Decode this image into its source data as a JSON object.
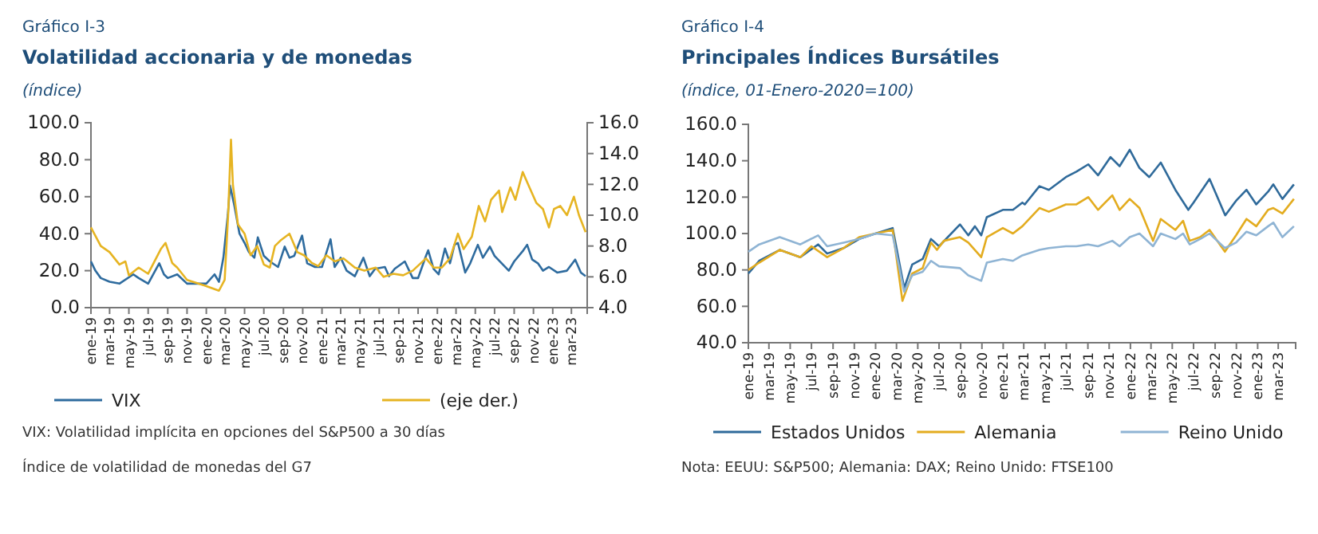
{
  "chart_data": [
    {
      "type": "line",
      "title": "Gráfico I-3",
      "subtitle": "Volatilidad accionaria y de monedas",
      "ylabel": "(índice)",
      "xlim": [
        "2019-01-01",
        "2023-04-20"
      ],
      "xticks": [
        {
          "value": "2019-01",
          "label": "ene-19"
        },
        {
          "value": "2019-03",
          "label": "mar-19"
        },
        {
          "value": "2019-05",
          "label": "may-19"
        },
        {
          "value": "2019-07",
          "label": "jul-19"
        },
        {
          "value": "2019-09",
          "label": "sep-19"
        },
        {
          "value": "2019-11",
          "label": "nov-19"
        },
        {
          "value": "2020-01",
          "label": "ene-20"
        },
        {
          "value": "2020-03",
          "label": "mar-20"
        },
        {
          "value": "2020-05",
          "label": "may-20"
        },
        {
          "value": "2020-07",
          "label": "jul-20"
        },
        {
          "value": "2020-09",
          "label": "sep-20"
        },
        {
          "value": "2020-11",
          "label": "nov-20"
        },
        {
          "value": "2021-01",
          "label": "ene-21"
        },
        {
          "value": "2021-03",
          "label": "mar-21"
        },
        {
          "value": "2021-05",
          "label": "may-21"
        },
        {
          "value": "2021-07",
          "label": "jul-21"
        },
        {
          "value": "2021-09",
          "label": "sep-21"
        },
        {
          "value": "2021-11",
          "label": "nov-21"
        },
        {
          "value": "2022-01",
          "label": "ene-22"
        },
        {
          "value": "2022-03",
          "label": "mar-22"
        },
        {
          "value": "2022-05",
          "label": "may-22"
        },
        {
          "value": "2022-07",
          "label": "jul-22"
        },
        {
          "value": "2022-09",
          "label": "sep-22"
        },
        {
          "value": "2022-11",
          "label": "nov-22"
        },
        {
          "value": "2023-01",
          "label": "ene-23"
        },
        {
          "value": "2023-03",
          "label": "mar-23"
        }
      ],
      "ylim": [
        0,
        100
      ],
      "yticks": [
        {
          "value": 0,
          "label": "0.0"
        },
        {
          "value": 20,
          "label": "20.0"
        },
        {
          "value": 40,
          "label": "40.0"
        },
        {
          "value": 60,
          "label": "60.0"
        },
        {
          "value": 80,
          "label": "80.0"
        },
        {
          "value": 100,
          "label": "100.0"
        }
      ],
      "y2lim": [
        4,
        16
      ],
      "y2ticks": [
        {
          "value": 4,
          "label": "4.0"
        },
        {
          "value": 6,
          "label": "6.0"
        },
        {
          "value": 8,
          "label": "8.0"
        },
        {
          "value": 10,
          "label": "10.0"
        },
        {
          "value": 12,
          "label": "12.0"
        },
        {
          "value": 14,
          "label": "14.0"
        },
        {
          "value": 16,
          "label": "16.0"
        }
      ],
      "legend": "bottom",
      "series": [
        {
          "name": "VIX",
          "color": "#2e6b9e",
          "x": [
            "2019-01-01",
            "2019-01-15",
            "2019-02-01",
            "2019-03-01",
            "2019-04-01",
            "2019-05-15",
            "2019-06-01",
            "2019-07-01",
            "2019-08-05",
            "2019-08-20",
            "2019-09-01",
            "2019-10-01",
            "2019-11-01",
            "2019-12-01",
            "2020-01-01",
            "2020-01-27",
            "2020-02-10",
            "2020-02-24",
            "2020-03-09",
            "2020-03-16",
            "2020-03-30",
            "2020-04-15",
            "2020-05-01",
            "2020-05-15",
            "2020-06-01",
            "2020-06-12",
            "2020-07-01",
            "2020-07-20",
            "2020-08-15",
            "2020-09-05",
            "2020-09-20",
            "2020-10-05",
            "2020-10-30",
            "2020-11-15",
            "2020-12-10",
            "2021-01-01",
            "2021-01-28",
            "2021-02-10",
            "2021-03-01",
            "2021-03-20",
            "2021-04-15",
            "2021-05-12",
            "2021-06-01",
            "2021-06-18",
            "2021-07-19",
            "2021-08-01",
            "2021-08-19",
            "2021-09-20",
            "2021-10-15",
            "2021-11-01",
            "2021-11-26",
            "2021-12-03",
            "2021-12-20",
            "2022-01-05",
            "2022-01-25",
            "2022-02-10",
            "2022-02-24",
            "2022-03-07",
            "2022-03-30",
            "2022-04-15",
            "2022-05-09",
            "2022-05-25",
            "2022-06-16",
            "2022-07-01",
            "2022-08-15",
            "2022-09-01",
            "2022-09-30",
            "2022-10-12",
            "2022-10-28",
            "2022-11-15",
            "2022-12-01",
            "2022-12-20",
            "2023-01-15",
            "2023-02-15",
            "2023-03-13",
            "2023-03-31",
            "2023-04-15"
          ],
          "values": [
            25,
            20,
            16,
            14,
            13,
            18,
            16,
            13,
            24,
            18,
            16,
            18,
            13,
            13,
            13,
            18,
            14,
            27,
            50,
            66,
            55,
            40,
            35,
            30,
            27,
            38,
            28,
            25,
            22,
            33,
            27,
            28,
            39,
            24,
            22,
            22,
            37,
            22,
            27,
            20,
            17,
            27,
            17,
            21,
            22,
            17,
            21,
            25,
            16,
            16,
            28,
            31,
            21,
            18,
            32,
            24,
            34,
            35,
            19,
            24,
            34,
            27,
            33,
            28,
            20,
            25,
            31,
            34,
            26,
            24,
            20,
            22,
            19,
            20,
            26,
            19,
            17
          ]
        },
        {
          "name": "(eje der.)",
          "color": "#e6b422",
          "axis": "y2",
          "x": [
            "2019-01-01",
            "2019-02-01",
            "2019-03-01",
            "2019-04-01",
            "2019-04-20",
            "2019-05-01",
            "2019-06-01",
            "2019-07-01",
            "2019-08-10",
            "2019-08-25",
            "2019-09-15",
            "2019-10-01",
            "2019-11-01",
            "2019-12-01",
            "2020-01-01",
            "2020-02-10",
            "2020-02-28",
            "2020-03-10",
            "2020-03-19",
            "2020-03-25",
            "2020-04-10",
            "2020-05-01",
            "2020-05-20",
            "2020-06-10",
            "2020-07-01",
            "2020-07-20",
            "2020-08-05",
            "2020-08-25",
            "2020-09-20",
            "2020-10-15",
            "2020-11-05",
            "2020-11-30",
            "2020-12-20",
            "2021-01-15",
            "2021-02-10",
            "2021-03-10",
            "2021-04-15",
            "2021-05-15",
            "2021-06-20",
            "2021-07-15",
            "2021-08-15",
            "2021-09-15",
            "2021-10-15",
            "2021-11-26",
            "2021-12-20",
            "2022-01-15",
            "2022-02-10",
            "2022-03-07",
            "2022-03-25",
            "2022-04-20",
            "2022-05-12",
            "2022-06-01",
            "2022-06-20",
            "2022-07-15",
            "2022-07-25",
            "2022-08-20",
            "2022-09-05",
            "2022-09-28",
            "2022-10-15",
            "2022-11-10",
            "2022-12-01",
            "2022-12-20",
            "2023-01-05",
            "2023-01-25",
            "2023-02-15",
            "2023-03-09",
            "2023-03-25",
            "2023-04-15"
          ],
          "values": [
            9.2,
            8.0,
            7.6,
            6.8,
            7.0,
            6.1,
            6.6,
            6.2,
            7.8,
            8.2,
            6.9,
            6.6,
            5.8,
            5.6,
            5.4,
            5.1,
            5.8,
            10,
            14.9,
            12,
            9.4,
            8.8,
            7.4,
            8.0,
            6.8,
            6.6,
            8.0,
            8.4,
            8.8,
            7.6,
            7.4,
            6.9,
            6.7,
            7.4,
            7.0,
            7.2,
            6.6,
            6.4,
            6.6,
            6.0,
            6.2,
            6.1,
            6.4,
            7.2,
            6.6,
            6.6,
            7.2,
            8.8,
            7.8,
            8.6,
            10.6,
            9.6,
            11.0,
            11.6,
            10.2,
            11.8,
            11.0,
            12.8,
            12.0,
            10.8,
            10.4,
            9.2,
            10.4,
            10.6,
            10.0,
            11.2,
            10.0,
            8.9
          ]
        }
      ],
      "annotations": [
        "VIX: Volatilidad implícita en opciones del S&P500 a 30 días",
        "Índice de volatilidad de monedas del G7"
      ]
    },
    {
      "type": "line",
      "title": "Gráfico I-4",
      "subtitle": "Principales Índices Bursátiles",
      "ylabel": "(índice, 01-Enero-2020=100)",
      "xlim": [
        "2019-01-01",
        "2023-04-20"
      ],
      "xticks": [
        {
          "value": "2019-01",
          "label": "ene-19"
        },
        {
          "value": "2019-03",
          "label": "mar-19"
        },
        {
          "value": "2019-05",
          "label": "may-19"
        },
        {
          "value": "2019-07",
          "label": "jul-19"
        },
        {
          "value": "2019-09",
          "label": "sep-19"
        },
        {
          "value": "2019-11",
          "label": "nov-19"
        },
        {
          "value": "2020-01",
          "label": "ene-20"
        },
        {
          "value": "2020-03",
          "label": "mar-20"
        },
        {
          "value": "2020-05",
          "label": "may-20"
        },
        {
          "value": "2020-07",
          "label": "jul-20"
        },
        {
          "value": "2020-09",
          "label": "sep-20"
        },
        {
          "value": "2020-11",
          "label": "nov-20"
        },
        {
          "value": "2021-01",
          "label": "ene-21"
        },
        {
          "value": "2021-03",
          "label": "mar-21"
        },
        {
          "value": "2021-05",
          "label": "may-21"
        },
        {
          "value": "2021-07",
          "label": "jul-21"
        },
        {
          "value": "2021-09",
          "label": "sep-21"
        },
        {
          "value": "2021-11",
          "label": "nov-21"
        },
        {
          "value": "2022-01",
          "label": "ene-22"
        },
        {
          "value": "2022-03",
          "label": "mar-22"
        },
        {
          "value": "2022-05",
          "label": "may-22"
        },
        {
          "value": "2022-07",
          "label": "jul-22"
        },
        {
          "value": "2022-09",
          "label": "sep-22"
        },
        {
          "value": "2022-11",
          "label": "nov-22"
        },
        {
          "value": "2023-01",
          "label": "ene-23"
        },
        {
          "value": "2023-03",
          "label": "mar-23"
        }
      ],
      "ylim": [
        40,
        160
      ],
      "yticks": [
        {
          "value": 40,
          "label": "40.0"
        },
        {
          "value": 60,
          "label": "60.0"
        },
        {
          "value": 80,
          "label": "80.0"
        },
        {
          "value": 100,
          "label": "100.0"
        },
        {
          "value": 120,
          "label": "120.0"
        },
        {
          "value": 140,
          "label": "140.0"
        },
        {
          "value": 160,
          "label": "160.0"
        }
      ],
      "legend": "bottom",
      "series": [
        {
          "name": "Estados Unidos",
          "color": "#2f6a9a",
          "x": [
            "2019-01-01",
            "2019-02-01",
            "2019-04-01",
            "2019-05-30",
            "2019-07-20",
            "2019-08-15",
            "2019-10-01",
            "2019-11-15",
            "2020-01-01",
            "2020-02-19",
            "2020-03-23",
            "2020-04-15",
            "2020-05-15",
            "2020-06-08",
            "2020-07-01",
            "2020-08-30",
            "2020-09-23",
            "2020-10-12",
            "2020-10-30",
            "2020-11-15",
            "2020-12-31",
            "2021-01-29",
            "2021-02-25",
            "2021-03-04",
            "2021-04-15",
            "2021-05-12",
            "2021-06-30",
            "2021-07-30",
            "2021-09-02",
            "2021-09-30",
            "2021-11-05",
            "2021-12-01",
            "2021-12-30",
            "2022-01-27",
            "2022-02-24",
            "2022-03-29",
            "2022-05-10",
            "2022-06-16",
            "2022-07-01",
            "2022-08-16",
            "2022-09-30",
            "2022-10-31",
            "2022-11-30",
            "2022-12-28",
            "2023-01-31",
            "2023-02-15",
            "2023-03-13",
            "2023-04-15"
          ],
          "values": [
            78,
            85,
            91,
            87,
            94,
            89,
            92,
            97,
            100,
            103,
            70,
            83,
            86,
            97,
            93,
            105,
            99,
            104,
            99,
            109,
            113,
            113,
            117,
            116,
            126,
            124,
            131,
            134,
            138,
            132,
            142,
            137,
            146,
            136,
            131,
            139,
            124,
            113,
            117,
            130,
            110,
            118,
            124,
            116,
            123,
            127,
            119,
            127
          ]
        },
        {
          "name": "Alemania",
          "color": "#e3ac1f",
          "x": [
            "2019-01-01",
            "2019-02-01",
            "2019-04-01",
            "2019-05-30",
            "2019-07-01",
            "2019-08-15",
            "2019-10-01",
            "2019-11-15",
            "2020-01-01",
            "2020-02-19",
            "2020-03-18",
            "2020-04-15",
            "2020-05-15",
            "2020-06-08",
            "2020-06-25",
            "2020-07-15",
            "2020-08-30",
            "2020-09-23",
            "2020-10-30",
            "2020-11-15",
            "2020-12-31",
            "2021-01-29",
            "2021-02-25",
            "2021-04-15",
            "2021-05-12",
            "2021-06-30",
            "2021-07-30",
            "2021-09-02",
            "2021-09-30",
            "2021-11-10",
            "2021-12-01",
            "2021-12-30",
            "2022-01-27",
            "2022-03-07",
            "2022-03-29",
            "2022-05-10",
            "2022-06-01",
            "2022-06-20",
            "2022-07-20",
            "2022-08-16",
            "2022-09-29",
            "2022-10-31",
            "2022-11-30",
            "2022-12-28",
            "2023-01-31",
            "2023-02-15",
            "2023-03-13",
            "2023-04-15"
          ],
          "values": [
            80,
            84,
            91,
            87,
            93,
            87,
            92,
            98,
            100,
            102,
            63,
            78,
            81,
            95,
            91,
            96,
            98,
            95,
            87,
            98,
            103,
            100,
            104,
            114,
            112,
            116,
            116,
            120,
            113,
            121,
            113,
            119,
            114,
            96,
            108,
            102,
            107,
            96,
            98,
            102,
            90,
            99,
            108,
            104,
            113,
            114,
            111,
            119
          ]
        },
        {
          "name": "Reino Unido",
          "color": "#8fb4d4",
          "x": [
            "2019-01-01",
            "2019-02-01",
            "2019-04-01",
            "2019-05-30",
            "2019-07-20",
            "2019-08-15",
            "2019-10-01",
            "2019-11-15",
            "2020-01-01",
            "2020-02-19",
            "2020-03-23",
            "2020-04-15",
            "2020-05-15",
            "2020-06-08",
            "2020-07-01",
            "2020-08-30",
            "2020-09-23",
            "2020-10-30",
            "2020-11-15",
            "2020-12-31",
            "2021-01-29",
            "2021-02-25",
            "2021-04-15",
            "2021-05-12",
            "2021-06-30",
            "2021-07-30",
            "2021-09-02",
            "2021-09-30",
            "2021-11-10",
            "2021-12-01",
            "2021-12-30",
            "2022-01-27",
            "2022-03-07",
            "2022-03-29",
            "2022-05-10",
            "2022-06-01",
            "2022-06-20",
            "2022-07-20",
            "2022-08-16",
            "2022-09-29",
            "2022-10-31",
            "2022-11-30",
            "2022-12-28",
            "2023-01-31",
            "2023-02-15",
            "2023-03-13",
            "2023-04-15"
          ],
          "values": [
            90,
            94,
            98,
            94,
            99,
            93,
            95,
            97,
            100,
            99,
            68,
            77,
            79,
            85,
            82,
            81,
            77,
            74,
            84,
            86,
            85,
            88,
            91,
            92,
            93,
            93,
            94,
            93,
            96,
            93,
            98,
            100,
            93,
            100,
            97,
            100,
            94,
            97,
            100,
            92,
            95,
            101,
            99,
            104,
            106,
            98,
            104
          ]
        }
      ],
      "annotations": [
        "Nota: EEUU: S&P500; Alemania: DAX; Reino Unido: FTSE100"
      ]
    }
  ]
}
